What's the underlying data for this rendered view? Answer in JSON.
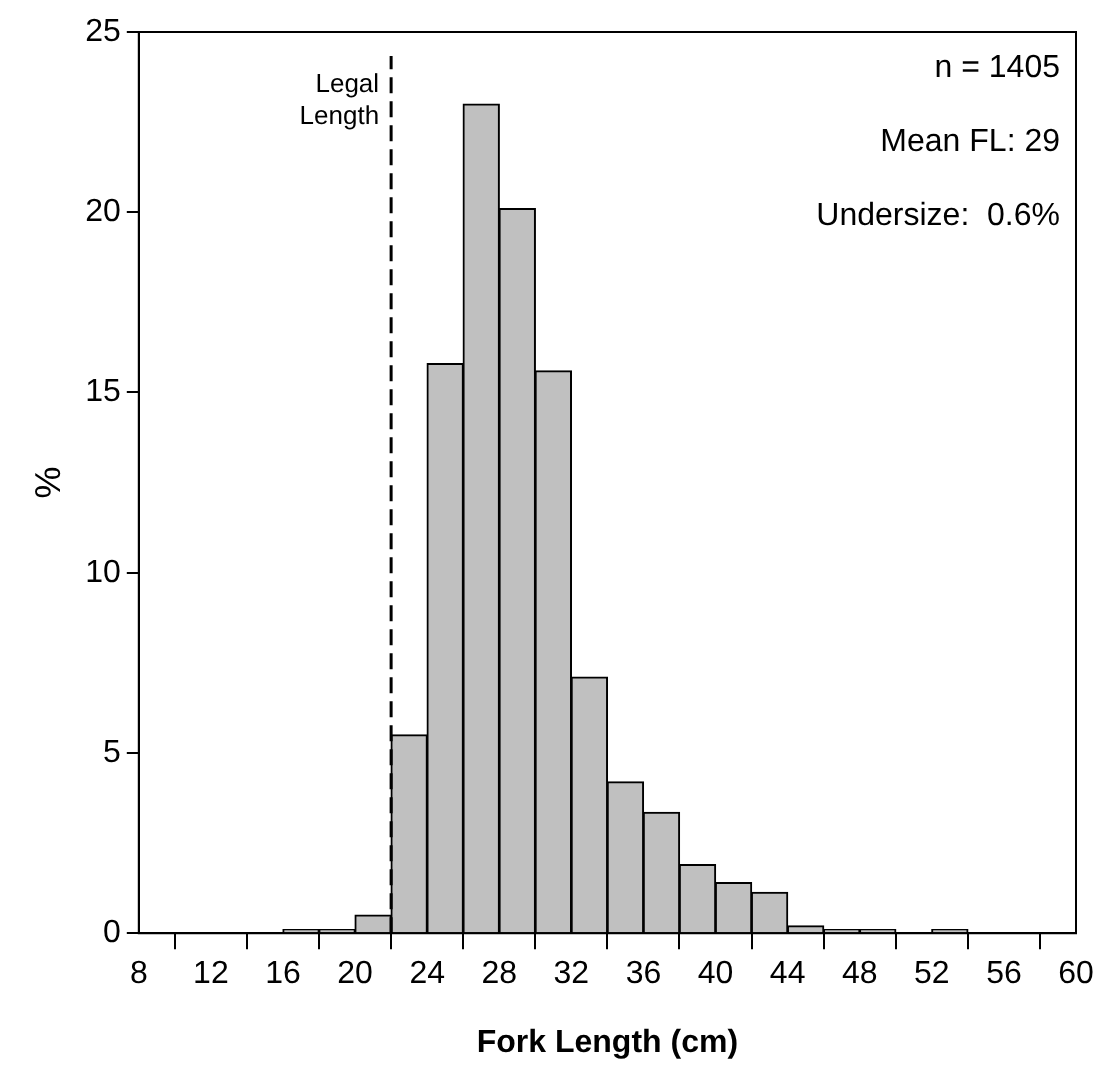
{
  "chart_data": {
    "type": "histogram",
    "xlabel": "Fork Length (cm)",
    "ylabel": "%",
    "bins": [
      8,
      10,
      12,
      14,
      16,
      18,
      20,
      22,
      24,
      26,
      28,
      30,
      32,
      34,
      36,
      38,
      40,
      42,
      44,
      46,
      48,
      50,
      52,
      54,
      56,
      58,
      60
    ],
    "values": [
      0,
      0,
      0,
      0,
      0.1,
      0.1,
      0.5,
      5.5,
      15.8,
      23,
      20.1,
      15.6,
      7.1,
      4.2,
      3.35,
      1.9,
      1.4,
      1.13,
      0.2,
      0.1,
      0.1,
      0,
      0.1,
      0,
      0,
      0
    ],
    "color": "#c0c0c0",
    "xlim": [
      8,
      60
    ],
    "xticks": [
      8,
      12,
      16,
      20,
      24,
      28,
      32,
      36,
      40,
      44,
      48,
      52,
      56,
      60
    ],
    "ylim": [
      0,
      25
    ],
    "yticks": [
      0,
      5,
      10,
      15,
      20,
      25
    ],
    "grid": false,
    "legend": false,
    "ref_lines": [
      {
        "axis": "x",
        "value": 22,
        "label": "Legal Length",
        "line_style": "dashed",
        "color": "#000000"
      }
    ],
    "annotations": [
      "n = 1405",
      "Mean FL: 29",
      "Undersize:  0.6%"
    ]
  }
}
